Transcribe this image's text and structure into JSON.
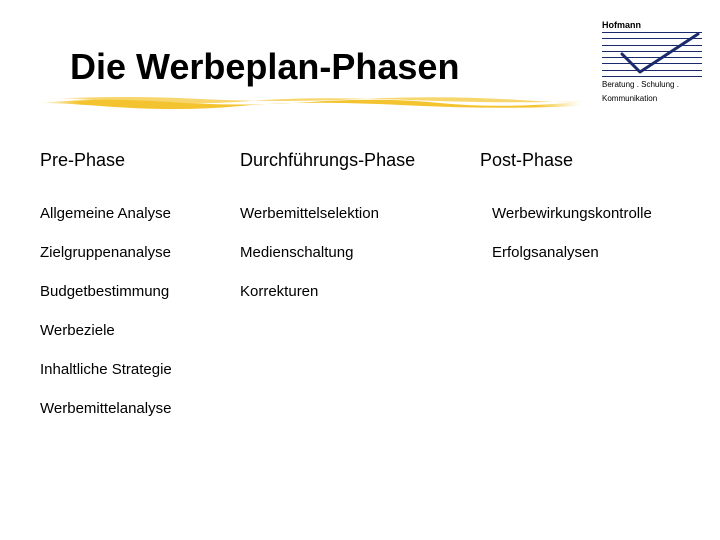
{
  "logo": {
    "name": "Hofmann",
    "sub1": "Beratung . Schulung .",
    "sub2": "Kommunikation",
    "line_color": "#1a2a6c",
    "check_color": "#1a2a6c",
    "line_count": 8
  },
  "title": "Die Werbeplan-Phasen",
  "underline_color": "#f4c430",
  "columns": {
    "pre": {
      "head": "Pre-Phase",
      "items": [
        "Allgemeine Analyse",
        "Zielgruppenanalyse",
        "Budgetbestimmung",
        "Werbeziele",
        "Inhaltliche Strategie",
        "Werbemittelanalyse"
      ]
    },
    "durch": {
      "head": "Durchführungs-Phase",
      "items": [
        "Werbemittelselektion",
        "Medienschaltung",
        "Korrekturen"
      ]
    },
    "post": {
      "head": "Post-Phase",
      "items": [
        "Werbewirkungskontrolle",
        "",
        "Erfolgsanalysen"
      ]
    }
  }
}
